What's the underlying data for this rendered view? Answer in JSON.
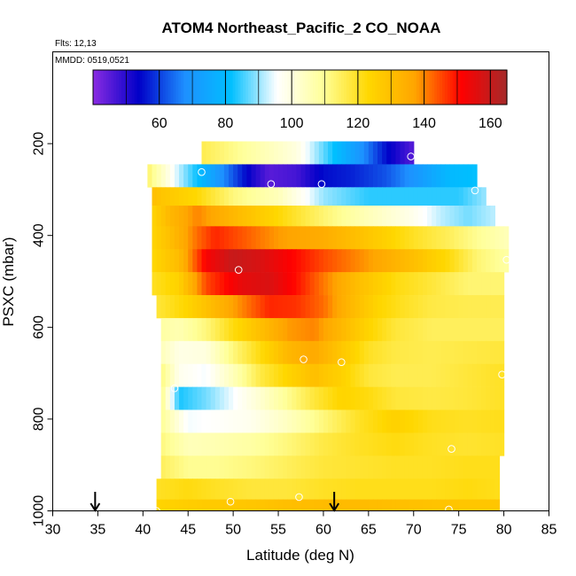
{
  "chart_data": {
    "type": "heatmap",
    "title": "ATOM4 Northeast_Pacific_2 CO_NOAA",
    "flights_label": "Flts: 12,13",
    "dates_label": "MMDD: 0519,0521",
    "xlabel": "Latitude (deg N)",
    "ylabel": "PSXC (mbar)",
    "xlim": [
      30,
      85
    ],
    "ylim": [
      1000,
      0
    ],
    "x_ticks": [
      30,
      35,
      40,
      45,
      50,
      55,
      60,
      65,
      70,
      75,
      80,
      85
    ],
    "y_ticks": [
      200,
      400,
      600,
      800,
      1000
    ],
    "colorbar": {
      "min": 40,
      "max": 165,
      "ticks": [
        60,
        80,
        100,
        120,
        140,
        160
      ],
      "palette": [
        "#8a2be2",
        "#0000c8",
        "#1e90ff",
        "#00bfff",
        "#ffffff",
        "#ffff99",
        "#ffd700",
        "#ffa500",
        "#ff0000",
        "#a52a2a"
      ]
    },
    "x_centers": [
      41,
      42,
      43,
      44,
      45,
      46,
      47,
      48,
      49,
      50,
      51,
      52,
      53,
      54,
      55,
      56,
      57,
      58,
      59,
      60,
      61,
      62,
      63,
      64,
      65,
      66,
      67,
      68,
      69,
      70,
      71,
      72,
      73,
      74,
      75,
      76,
      77,
      78,
      79,
      80
    ],
    "bands": [
      {
        "p": [
          195,
          245
        ],
        "lat": [
          46.5,
          70
        ],
        "x": [
          46,
          57,
          60,
          64,
          67,
          70
        ],
        "v": [
          117,
          100,
          87,
          70,
          55,
          45
        ]
      },
      {
        "p": [
          245,
          295
        ],
        "lat": [
          40.5,
          77
        ],
        "x": [
          40,
          44,
          48,
          52,
          54,
          57,
          60,
          63,
          67,
          71,
          74,
          77
        ],
        "v": [
          117,
          92,
          72,
          52,
          45,
          47,
          55,
          57,
          62,
          72,
          80,
          82
        ]
      },
      {
        "p": [
          295,
          335
        ],
        "lat": [
          41,
          78
        ],
        "x": [
          41,
          43,
          46,
          50,
          55,
          60,
          65,
          70,
          75,
          78
        ],
        "v": [
          130,
          127,
          123,
          112,
          105,
          90,
          84,
          84,
          84,
          90
        ]
      },
      {
        "p": [
          335,
          380
        ],
        "lat": [
          41,
          79
        ],
        "x": [
          41,
          43,
          46,
          50,
          55,
          60,
          65,
          70,
          73,
          76,
          79
        ],
        "v": [
          124,
          132,
          140,
          132,
          123,
          113,
          105,
          98,
          92,
          88,
          92
        ]
      },
      {
        "p": [
          380,
          430
        ],
        "lat": [
          41,
          80.5
        ],
        "x": [
          41,
          43,
          46,
          48,
          51,
          55,
          60,
          65,
          70,
          74,
          77,
          80.5
        ],
        "v": [
          124,
          130,
          142,
          148,
          144,
          138,
          135,
          128,
          120,
          115,
          110,
          105
        ]
      },
      {
        "p": [
          430,
          480
        ],
        "lat": [
          41,
          80.5
        ],
        "x": [
          41,
          44,
          47,
          50,
          53,
          56,
          60,
          65,
          70,
          74,
          77,
          80.5
        ],
        "v": [
          123,
          131,
          152,
          160,
          157,
          152,
          145,
          138,
          130,
          122,
          113,
          108
        ]
      },
      {
        "p": [
          480,
          530
        ],
        "lat": [
          41,
          80
        ],
        "x": [
          41,
          44,
          47,
          51,
          54,
          57,
          60,
          64,
          68,
          72,
          76,
          80
        ],
        "v": [
          120,
          125,
          145,
          155,
          157,
          150,
          141,
          130,
          122,
          118,
          113,
          113
        ]
      },
      {
        "p": [
          530,
          580
        ],
        "lat": [
          41.5,
          80
        ],
        "x": [
          41.5,
          45,
          48,
          51,
          54,
          57,
          60,
          63,
          66,
          69,
          72,
          76,
          80
        ],
        "v": [
          118,
          124,
          132,
          140,
          148,
          147,
          142,
          132,
          124,
          120,
          117,
          116,
          116
        ]
      },
      {
        "p": [
          580,
          630
        ],
        "lat": [
          42,
          80
        ],
        "x": [
          42,
          44,
          47,
          50,
          53,
          56,
          59,
          62,
          65,
          68,
          72,
          76,
          80
        ],
        "v": [
          108,
          106,
          112,
          122,
          130,
          138,
          140,
          132,
          124,
          118,
          115,
          115,
          115
        ]
      },
      {
        "p": [
          630,
          680
        ],
        "lat": [
          42,
          80
        ],
        "x": [
          42,
          44,
          47,
          50,
          53,
          56,
          59,
          62,
          65,
          68,
          72,
          76,
          80
        ],
        "v": [
          105,
          99,
          100,
          112,
          122,
          132,
          136,
          128,
          120,
          117,
          116,
          117,
          118
        ]
      },
      {
        "p": [
          680,
          730
        ],
        "lat": [
          42,
          80
        ],
        "x": [
          42,
          44,
          47,
          50,
          53,
          56,
          59,
          62,
          65,
          68,
          72,
          76,
          80
        ],
        "v": [
          112,
          98,
          95,
          105,
          117,
          124,
          130,
          125,
          118,
          116,
          116,
          118,
          120
        ]
      },
      {
        "p": [
          730,
          780
        ],
        "lat": [
          42,
          80
        ],
        "x": [
          42,
          44,
          47,
          50,
          53,
          56,
          59,
          62,
          65,
          68,
          72,
          76,
          80
        ],
        "v": [
          112,
          83,
          88,
          95,
          102,
          110,
          118,
          124,
          122,
          118,
          117,
          118,
          120
        ]
      },
      {
        "p": [
          780,
          830
        ],
        "lat": [
          42,
          80
        ],
        "x": [
          42,
          45,
          48,
          52,
          56,
          60,
          64,
          68,
          72,
          76,
          80
        ],
        "v": [
          110,
          95,
          96,
          98,
          104,
          112,
          120,
          125,
          121,
          120,
          121
        ]
      },
      {
        "p": [
          830,
          880
        ],
        "lat": [
          42,
          80
        ],
        "x": [
          42,
          45,
          48,
          52,
          56,
          60,
          64,
          68,
          72,
          76,
          80
        ],
        "v": [
          112,
          105,
          106,
          108,
          112,
          117,
          120,
          122,
          120,
          119,
          120
        ]
      },
      {
        "p": [
          880,
          930
        ],
        "lat": [
          42,
          79.5
        ],
        "x": [
          42,
          45,
          48,
          52,
          56,
          60,
          64,
          68,
          72,
          76,
          79.5
        ],
        "v": [
          115,
          110,
          110,
          112,
          115,
          118,
          119,
          120,
          120,
          121,
          121
        ]
      },
      {
        "p": [
          930,
          975
        ],
        "lat": [
          41.5,
          79.5
        ],
        "x": [
          41.5,
          45,
          48,
          52,
          56,
          60,
          64,
          68,
          72,
          76,
          79.5
        ],
        "v": [
          120,
          122,
          120,
          118,
          118,
          120,
          121,
          121,
          121,
          122,
          121
        ]
      },
      {
        "p": [
          975,
          1000
        ],
        "lat": [
          41.5,
          79.5
        ],
        "x": [
          41.5,
          45,
          48,
          52,
          56,
          60,
          64,
          68,
          72,
          76,
          79.5
        ],
        "v": [
          124,
          126,
          127,
          128,
          130,
          131,
          131,
          130,
          129,
          128,
          128
        ]
      }
    ],
    "sample_points": [
      {
        "lat": 69.7,
        "p": 228
      },
      {
        "lat": 46.5,
        "p": 262
      },
      {
        "lat": 54.2,
        "p": 288
      },
      {
        "lat": 59.8,
        "p": 288
      },
      {
        "lat": 76.8,
        "p": 302
      },
      {
        "lat": 80.3,
        "p": 453
      },
      {
        "lat": 50.6,
        "p": 475
      },
      {
        "lat": 57.8,
        "p": 670
      },
      {
        "lat": 62.0,
        "p": 676
      },
      {
        "lat": 79.8,
        "p": 703
      },
      {
        "lat": 43.5,
        "p": 733
      },
      {
        "lat": 74.2,
        "p": 865
      },
      {
        "lat": 57.3,
        "p": 970
      },
      {
        "lat": 49.7,
        "p": 980
      },
      {
        "lat": 41.5,
        "p": 1000
      },
      {
        "lat": 73.9,
        "p": 997
      }
    ],
    "arrows": [
      34.7,
      61.2
    ]
  }
}
